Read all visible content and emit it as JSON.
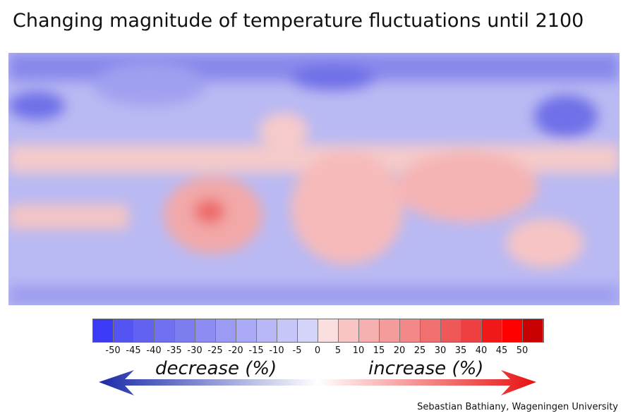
{
  "title": "Changing magnitude of temperature fluctuations until 2100",
  "colorbar": {
    "ticks": [
      "-50",
      "-45",
      "-40",
      "-35",
      "-30",
      "-25",
      "-20",
      "-15",
      "-10",
      "-5",
      "0",
      "5",
      "10",
      "15",
      "20",
      "25",
      "30",
      "35",
      "40",
      "45",
      "50"
    ],
    "colors": [
      "#3b3bf5",
      "#5454f2",
      "#6262f0",
      "#7070f0",
      "#7d7df0",
      "#8c8cf2",
      "#9b9bf4",
      "#aaaaf6",
      "#b8b8f7",
      "#c6c6f8",
      "#d4d4fa",
      "#fbdede",
      "#f8c4c4",
      "#f6b0b0",
      "#f49c9c",
      "#f28888",
      "#f07070",
      "#ee5858",
      "#ee4040",
      "#f01818",
      "#ff0000",
      "#c80000"
    ]
  },
  "decrease_label": "decrease (%)",
  "increase_label": "increase (%)",
  "credit": "Sebastian Bathiany, Wageningen University"
}
